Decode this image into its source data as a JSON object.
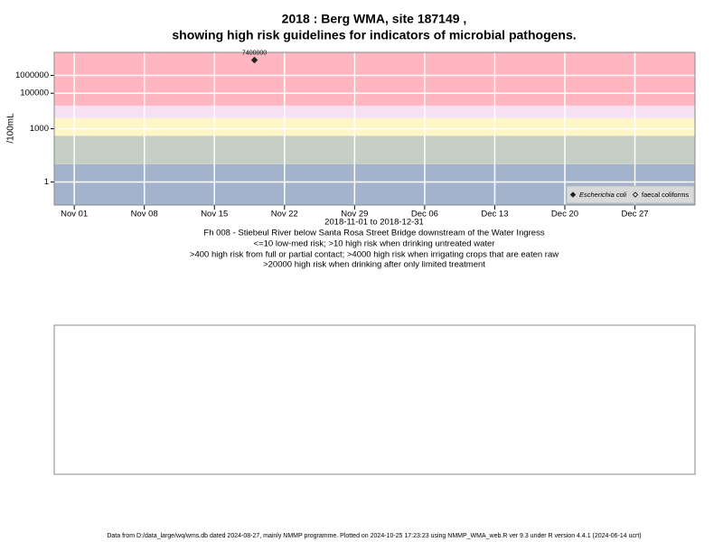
{
  "chart_data": {
    "type": "scatter",
    "title": "2018 : Berg WMA, site 187149 ,",
    "subtitle": "showing high risk guidelines for indicators of microbial pathogens.",
    "y_label": "/100mL",
    "x": [
      "2018-11-19"
    ],
    "series": [
      {
        "name": "Escherichia coli",
        "color": "#222222",
        "values": [
          7400000
        ]
      },
      {
        "name": "faecal coliforms",
        "color": "#222222",
        "values": [
          null
        ]
      }
    ],
    "log_y": true,
    "ylim": [
      0.05,
      20000000
    ],
    "yticks": [
      1,
      1000,
      100000,
      1000000
    ],
    "xlim": [
      "2018-10-30",
      "2019-01-02"
    ],
    "xticks": [
      {
        "value": "2018-11-01",
        "label": "Nov 01"
      },
      {
        "value": "2018-11-08",
        "label": "Nov 08"
      },
      {
        "value": "2018-11-15",
        "label": "Nov 15"
      },
      {
        "value": "2018-11-22",
        "label": "Nov 22"
      },
      {
        "value": "2018-11-29",
        "label": "Nov 29"
      },
      {
        "value": "2018-12-06",
        "label": "Dec 06"
      },
      {
        "value": "2018-12-13",
        "label": "Dec 13"
      },
      {
        "value": "2018-12-20",
        "label": "Dec 20"
      },
      {
        "value": "2018-12-27",
        "label": "Dec 27"
      }
    ],
    "grid": true,
    "legend_position": "bottom-right",
    "band_limits": [
      10,
      400,
      4000,
      20000
    ],
    "band_colors": [
      "#a4b3cc",
      "#c5cfc3",
      "#fff6c8",
      "#f6e0f4",
      "#ffb6c1"
    ],
    "date_range": "2018-11-01 to 2018-12-31",
    "site_description": "Fh 008 - Stiebeul River below Santa Rosa Street Bridge downstream of the Water Ingress",
    "guidelines": [
      "<=10 low-med risk; >10 high risk when drinking untreated water",
      ">400 high risk from full or partial contact; >4000 high risk when irrigating crops that are eaten raw",
      ">20000 high risk when drinking after only limited treatment"
    ],
    "footer": "Data from D:/data_large/wq/wms.db dated 2024-08-27, mainly NMMP programme. Plotted on 2024-10-25 17:23:23 using NMMP_WMA_web.R ver 9.3 under R version 4.4.1 (2024-06-14 ucrt)"
  }
}
